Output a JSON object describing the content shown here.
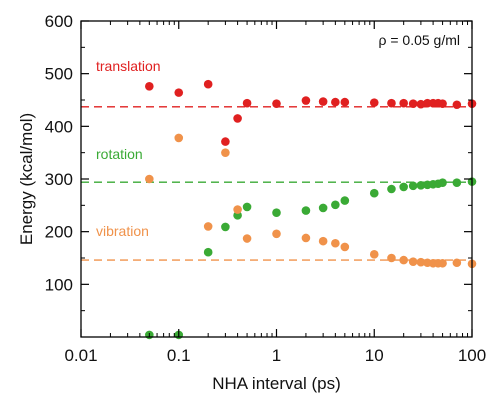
{
  "chart_data": {
    "type": "scatter",
    "x_scale": "log",
    "xlim": [
      0.01,
      100
    ],
    "ylim": [
      0,
      600
    ],
    "xlabel": "NHA interval (ps)",
    "ylabel": "Energy (kcal/mol)",
    "x_ticks": [
      0.01,
      0.1,
      1,
      10,
      100
    ],
    "x_tick_labels": [
      "0.01",
      "0.1",
      "1",
      "10",
      "100"
    ],
    "y_ticks": [
      100,
      200,
      300,
      400,
      500,
      600
    ],
    "y_tick_labels": [
      "100",
      "200",
      "300",
      "400",
      "500",
      "600"
    ],
    "annotation": "ρ = 0.05 g/ml",
    "grid": false,
    "series": [
      {
        "name": "translation",
        "color": "#e02020",
        "reference_line": 437,
        "points": [
          {
            "x": 0.05,
            "y": 476
          },
          {
            "x": 0.1,
            "y": 464
          },
          {
            "x": 0.2,
            "y": 480
          },
          {
            "x": 0.3,
            "y": 371
          },
          {
            "x": 0.4,
            "y": 415
          },
          {
            "x": 0.5,
            "y": 444
          },
          {
            "x": 1,
            "y": 443
          },
          {
            "x": 2,
            "y": 449
          },
          {
            "x": 3,
            "y": 447
          },
          {
            "x": 4,
            "y": 446
          },
          {
            "x": 5,
            "y": 446
          },
          {
            "x": 10,
            "y": 445
          },
          {
            "x": 15,
            "y": 444
          },
          {
            "x": 20,
            "y": 444
          },
          {
            "x": 25,
            "y": 443
          },
          {
            "x": 30,
            "y": 442
          },
          {
            "x": 35,
            "y": 444
          },
          {
            "x": 40,
            "y": 444
          },
          {
            "x": 45,
            "y": 444
          },
          {
            "x": 50,
            "y": 443
          },
          {
            "x": 70,
            "y": 441
          },
          {
            "x": 100,
            "y": 443
          }
        ]
      },
      {
        "name": "rotation",
        "color": "#3aaa35",
        "reference_line": 294,
        "points": [
          {
            "x": 0.05,
            "y": 4
          },
          {
            "x": 0.1,
            "y": 4
          },
          {
            "x": 0.2,
            "y": 161
          },
          {
            "x": 0.3,
            "y": 209
          },
          {
            "x": 0.4,
            "y": 231
          },
          {
            "x": 0.5,
            "y": 247
          },
          {
            "x": 1,
            "y": 236
          },
          {
            "x": 2,
            "y": 240
          },
          {
            "x": 3,
            "y": 245
          },
          {
            "x": 4,
            "y": 251
          },
          {
            "x": 5,
            "y": 259
          },
          {
            "x": 10,
            "y": 273
          },
          {
            "x": 15,
            "y": 281
          },
          {
            "x": 20,
            "y": 285
          },
          {
            "x": 25,
            "y": 287
          },
          {
            "x": 30,
            "y": 288
          },
          {
            "x": 35,
            "y": 289
          },
          {
            "x": 40,
            "y": 290
          },
          {
            "x": 45,
            "y": 291
          },
          {
            "x": 50,
            "y": 293
          },
          {
            "x": 70,
            "y": 293
          },
          {
            "x": 100,
            "y": 295
          }
        ]
      },
      {
        "name": "vibration",
        "color": "#f0924a",
        "reference_line": 146,
        "points": [
          {
            "x": 0.05,
            "y": 300
          },
          {
            "x": 0.1,
            "y": 378
          },
          {
            "x": 0.2,
            "y": 210
          },
          {
            "x": 0.3,
            "y": 350
          },
          {
            "x": 0.4,
            "y": 242
          },
          {
            "x": 0.5,
            "y": 187
          },
          {
            "x": 1,
            "y": 196
          },
          {
            "x": 2,
            "y": 188
          },
          {
            "x": 3,
            "y": 182
          },
          {
            "x": 4,
            "y": 178
          },
          {
            "x": 5,
            "y": 171
          },
          {
            "x": 10,
            "y": 157
          },
          {
            "x": 15,
            "y": 150
          },
          {
            "x": 20,
            "y": 146
          },
          {
            "x": 25,
            "y": 143
          },
          {
            "x": 30,
            "y": 142
          },
          {
            "x": 35,
            "y": 141
          },
          {
            "x": 40,
            "y": 140
          },
          {
            "x": 45,
            "y": 140
          },
          {
            "x": 50,
            "y": 140
          },
          {
            "x": 70,
            "y": 141
          },
          {
            "x": 100,
            "y": 139
          }
        ]
      }
    ]
  }
}
